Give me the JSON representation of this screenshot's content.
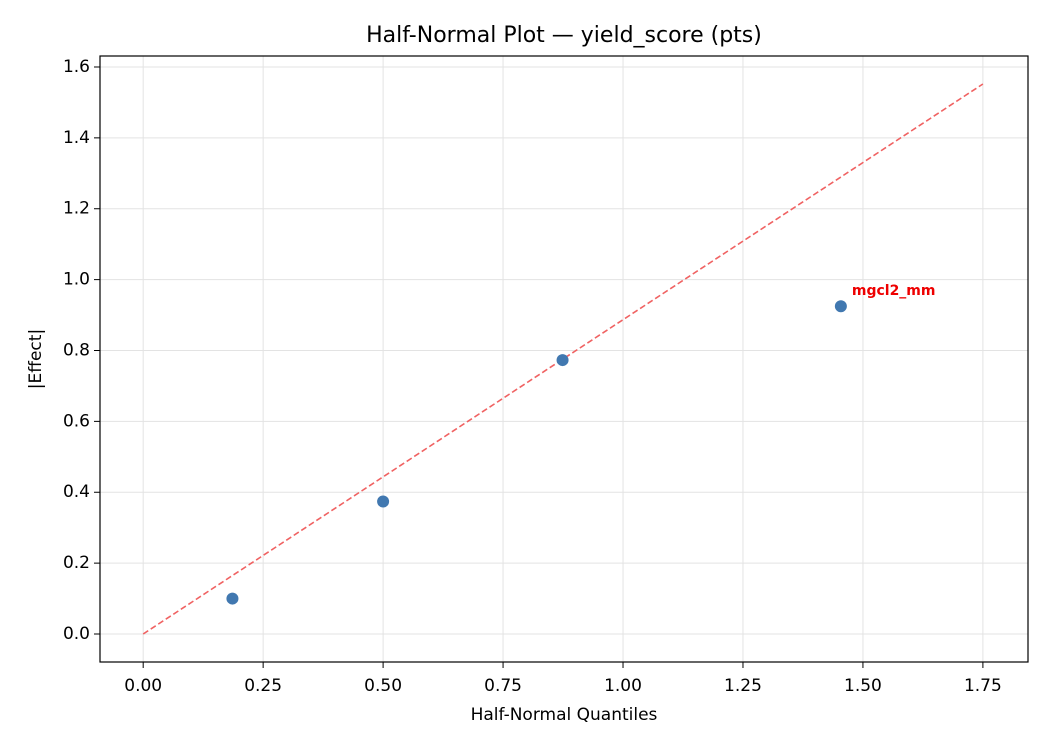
{
  "chart_data": {
    "type": "scatter",
    "title": "Half-Normal Plot — yield_score (pts)",
    "x_label": "Half-Normal Quantiles",
    "y_label": "|Effect|",
    "xlim": [
      -0.09,
      1.844
    ],
    "ylim": [
      -0.079,
      1.631
    ],
    "xticks": [
      {
        "value": 0,
        "label": "0.00"
      },
      0.25,
      {
        "value": 0.5,
        "label": "0.50"
      },
      0.75,
      {
        "value": 1,
        "label": "1.00"
      },
      1.25,
      {
        "value": 1.5,
        "label": "1.50"
      },
      1.75
    ],
    "yticks": [
      {
        "value": 0,
        "label": "0.0"
      },
      0.2,
      0.4,
      0.6,
      0.8,
      {
        "value": 1,
        "label": "1.0"
      },
      1.2,
      1.4,
      1.6
    ],
    "grid": true,
    "series": [
      {
        "type": "scatter",
        "color": "#4178b0",
        "x": [
          0.186,
          0.5,
          0.874,
          1.454
        ],
        "values": [
          0.1,
          0.374,
          0.773,
          0.925
        ],
        "labels": [
          null,
          null,
          null,
          "mgcl2_mm"
        ],
        "label_color": "#ee0000"
      },
      {
        "type": "line",
        "color": "#f06262",
        "dashed": true,
        "x": [
          0,
          1.75
        ],
        "values": [
          0,
          1.552
        ]
      }
    ]
  }
}
